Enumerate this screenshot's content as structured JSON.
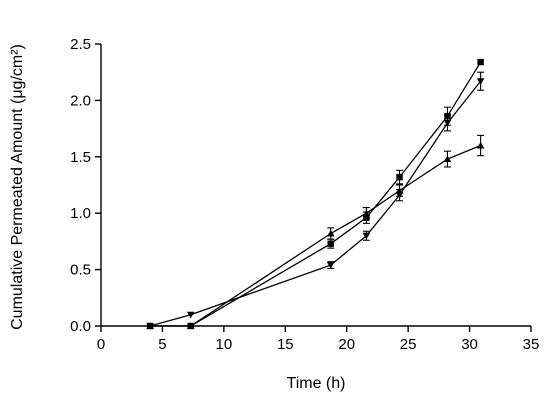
{
  "chart_data": {
    "type": "line",
    "title": "",
    "xlabel": "Time (h)",
    "ylabel": "Cumulative Permeated Amount (μg/cm²)",
    "xlim": [
      0,
      35
    ],
    "ylim": [
      0.0,
      2.5
    ],
    "xticks": [
      0,
      5,
      10,
      15,
      20,
      25,
      30,
      35
    ],
    "xtick_labels": [
      "0",
      "5",
      "10",
      "15",
      "20",
      "25",
      "30",
      "35"
    ],
    "yticks": [
      0.0,
      0.5,
      1.0,
      1.5,
      2.0,
      2.5
    ],
    "ytick_labels": [
      "0.0",
      "0.5",
      "1.0",
      "1.5",
      "2.0",
      "2.5"
    ],
    "grid": false,
    "legend": "none",
    "series": [
      {
        "marker": "square",
        "x": [
          4.0,
          7.3,
          18.7,
          21.6,
          24.3,
          28.2,
          30.9
        ],
        "y": [
          0.0,
          0.0,
          0.73,
          0.96,
          1.32,
          1.86,
          2.34
        ],
        "err": [
          0.0,
          0.0,
          0.04,
          0.05,
          0.06,
          0.08,
          0.0
        ]
      },
      {
        "marker": "triangle-down",
        "x": [
          4.0,
          7.3,
          18.7,
          21.6,
          24.3,
          28.2,
          30.9
        ],
        "y": [
          0.0,
          0.1,
          0.54,
          0.8,
          1.16,
          1.8,
          2.17
        ],
        "err": [
          0.0,
          0.0,
          0.03,
          0.04,
          0.05,
          0.07,
          0.08
        ]
      },
      {
        "marker": "triangle-up",
        "x": [
          4.0,
          7.3,
          18.7,
          21.6,
          24.3,
          28.2,
          30.9
        ],
        "y": [
          0.0,
          0.0,
          0.82,
          1.0,
          1.2,
          1.48,
          1.6
        ],
        "err": [
          0.0,
          0.0,
          0.05,
          0.05,
          0.05,
          0.07,
          0.09
        ]
      }
    ]
  }
}
